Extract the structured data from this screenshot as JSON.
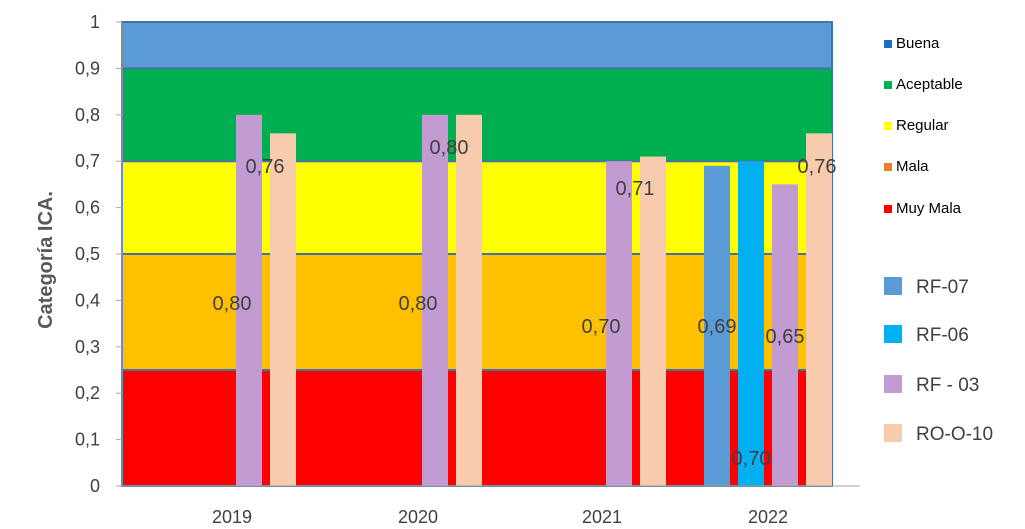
{
  "chart_data": {
    "type": "bar",
    "title": "",
    "xlabel": "",
    "ylabel": "Categoría ICA.",
    "ylim": [
      0,
      1
    ],
    "categories": [
      "2019",
      "2020",
      "2021",
      "2022"
    ],
    "y_ticks": [
      "0",
      "0,1",
      "0,2",
      "0,3",
      "0,4",
      "0,5",
      "0,6",
      "0,7",
      "0,8",
      "0,9",
      "1"
    ],
    "bands": [
      {
        "name": "Buena",
        "from": 0.9,
        "to": 1.0,
        "color": "#5b9bd5"
      },
      {
        "name": "Aceptable",
        "from": 0.7,
        "to": 0.9,
        "color": "#00b050"
      },
      {
        "name": "Regular",
        "from": 0.5,
        "to": 0.7,
        "color": "#ffff00"
      },
      {
        "name": "Mala",
        "from": 0.25,
        "to": 0.5,
        "color": "#ffc000"
      },
      {
        "name": "Muy Mala",
        "from": 0.0,
        "to": 0.25,
        "color": "#ff0000"
      }
    ],
    "band_legend": [
      {
        "name": "Buena",
        "color": "#1f6fbf"
      },
      {
        "name": "Aceptable",
        "color": "#00b050"
      },
      {
        "name": "Regular",
        "color": "#ffff00"
      },
      {
        "name": "Mala",
        "color": "#ed7d31"
      },
      {
        "name": "Muy Mala",
        "color": "#ff0000"
      }
    ],
    "series": [
      {
        "name": "RF-07",
        "color": "#5b9bd5",
        "values": [
          null,
          null,
          null,
          0.69
        ]
      },
      {
        "name": "RF-06",
        "color": "#00b0f0",
        "values": [
          null,
          null,
          null,
          0.7
        ]
      },
      {
        "name": "RF - 03",
        "color": "#c39bd3",
        "values": [
          0.8,
          0.8,
          0.7,
          0.65
        ]
      },
      {
        "name": "RO-O-10",
        "color": "#f8cbad",
        "values": [
          0.76,
          0.8,
          0.71,
          0.76
        ]
      }
    ],
    "data_labels": [
      {
        "series": "RF-07",
        "category": "2022",
        "text": "0,69"
      },
      {
        "series": "RF-06",
        "category": "2022",
        "text": "0,70"
      },
      {
        "series": "RF - 03",
        "category": "2019",
        "text": "0,80"
      },
      {
        "series": "RF - 03",
        "category": "2020",
        "text": "0,80"
      },
      {
        "series": "RF - 03",
        "category": "2021",
        "text": "0,70"
      },
      {
        "series": "RF - 03",
        "category": "2022",
        "text": "0,65"
      },
      {
        "series": "RO-O-10",
        "category": "2019",
        "text": "0,76"
      },
      {
        "series": "RO-O-10",
        "category": "2020",
        "text": "0,80"
      },
      {
        "series": "RO-O-10",
        "category": "2021",
        "text": "0,71"
      },
      {
        "series": "RO-O-10",
        "category": "2022",
        "text": "0,76"
      }
    ],
    "grid": false,
    "legend_position": "right"
  }
}
